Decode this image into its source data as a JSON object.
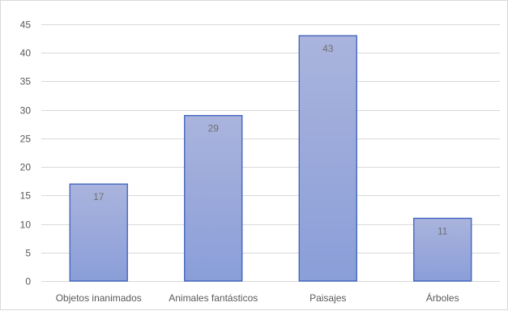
{
  "chart_data": {
    "type": "bar",
    "title": "",
    "xlabel": "",
    "ylabel": "",
    "categories": [
      "Objetos inanimados",
      "Animales fantásticos",
      "Paisajes",
      "Árboles"
    ],
    "values": [
      17,
      29,
      43,
      11
    ],
    "data_labels": [
      "17",
      "29",
      "43",
      "11"
    ],
    "ylim": [
      0,
      45
    ],
    "yticks": [
      0,
      5,
      10,
      15,
      20,
      25,
      30,
      35,
      40,
      45
    ],
    "grid": true,
    "legend": "none",
    "colors": {
      "bar_top": "#aab4dd",
      "bar_bottom": "#8a9ed8",
      "bar_border": "#3b5fbd",
      "grid": "#d9d9d9"
    }
  }
}
